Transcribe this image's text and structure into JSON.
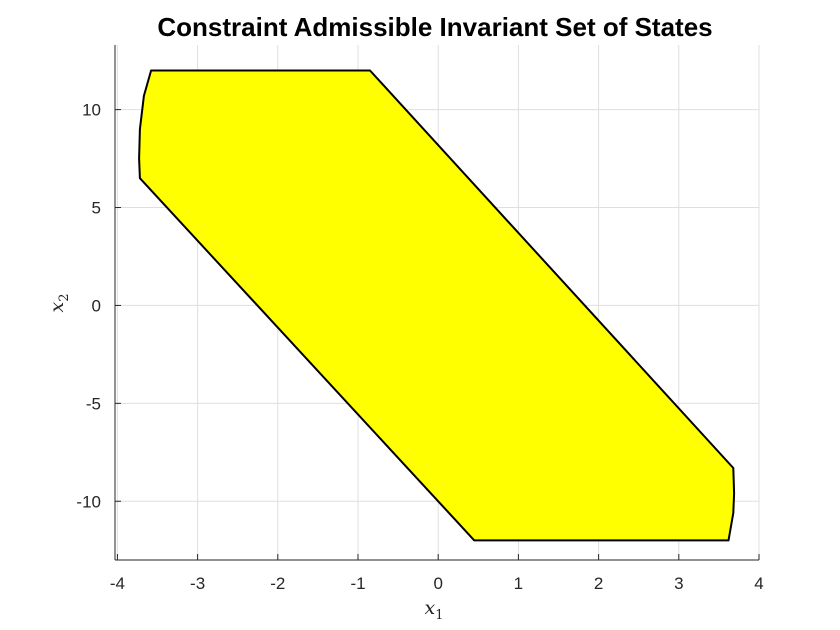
{
  "chart_data": {
    "type": "area",
    "title": "Constraint Admissible Invariant Set of States",
    "xlabel": "x",
    "xlabel_sub": "1",
    "ylabel": "x",
    "ylabel_sub": "2",
    "xlim": [
      -4,
      4
    ],
    "ylim": [
      -12,
      12
    ],
    "xticks": [
      -4,
      -3,
      -2,
      -1,
      0,
      1,
      2,
      3,
      4
    ],
    "yticks": [
      -10,
      -5,
      0,
      5,
      10
    ],
    "xtick_labels": [
      "-4",
      "-3",
      "-2",
      "-1",
      "0",
      "1",
      "2",
      "3",
      "4"
    ],
    "ytick_labels": [
      "-10",
      "-5",
      "0",
      "5",
      "10"
    ],
    "grid": true,
    "legend": "none",
    "fill_color": "#ffff00",
    "edge_color": "#000000",
    "polygon": {
      "x": [
        -3.58,
        -0.85,
        3.68,
        3.69,
        3.68,
        3.62,
        0.45,
        -3.72,
        -3.73,
        -3.72,
        -3.67
      ],
      "y": [
        12.0,
        12.0,
        -8.3,
        -9.6,
        -10.6,
        -12.0,
        -12.0,
        6.5,
        7.5,
        9.0,
        10.7
      ]
    }
  }
}
